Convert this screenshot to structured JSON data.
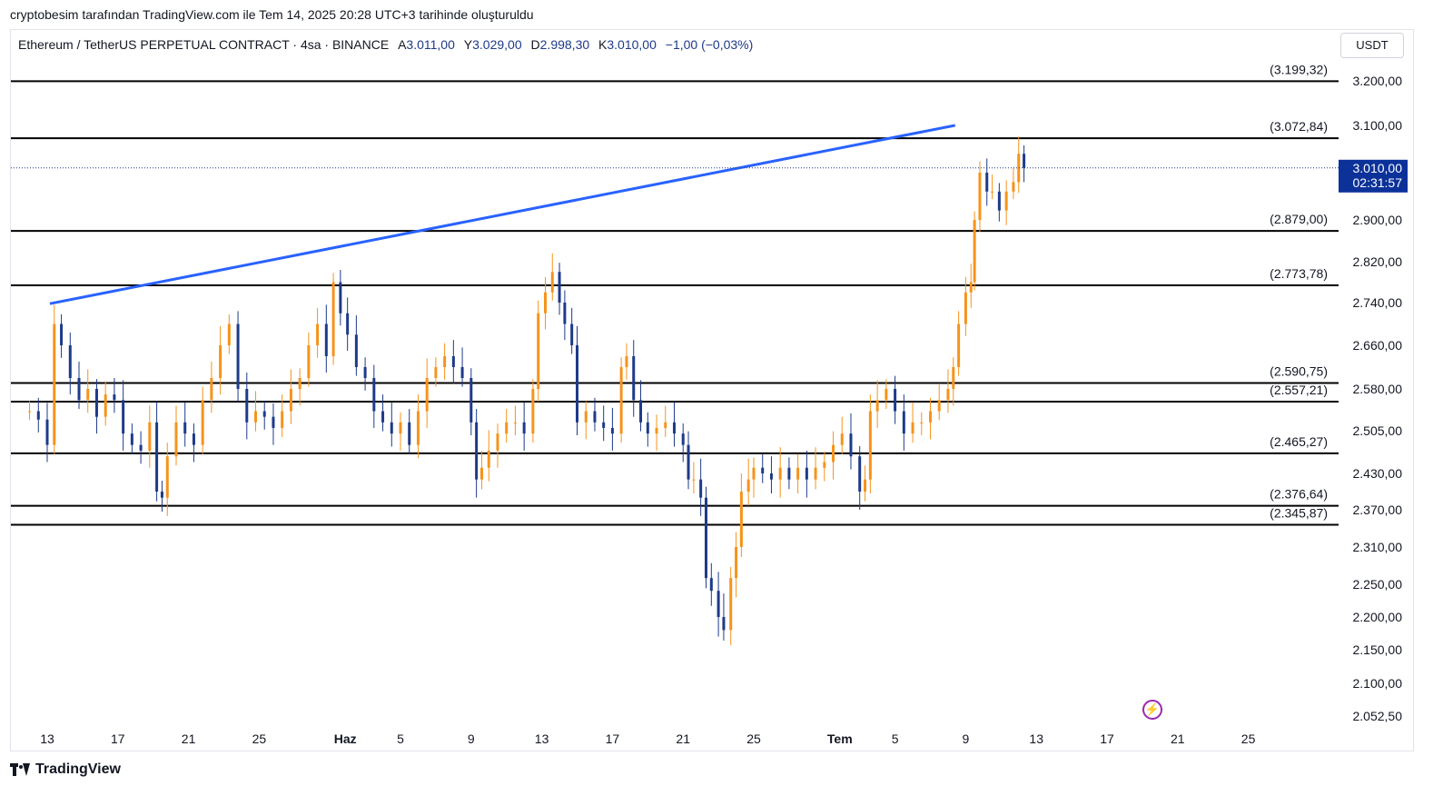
{
  "header": {
    "note": "cryptobesim tarafından TradingView.com ile Tem 14, 2025 20:28 UTC+3 tarihinde oluşturuldu"
  },
  "legend": {
    "symbol": "Ethereum / TetherUS PERPETUAL CONTRACT · 4sa · BINANCE",
    "open_label": "A",
    "open": "3.011,00",
    "high_label": "Y",
    "high": "3.029,00",
    "low_label": "D",
    "low": "2.998,30",
    "close_label": "K",
    "close": "3.010,00",
    "change": "−1,00 (−0,03%)"
  },
  "currency": "USDT",
  "price_tag": {
    "price": "3.010,00",
    "countdown": "02:31:57"
  },
  "branding": {
    "name": "TradingView"
  },
  "icons": {
    "logo": "tradingview-logo-icon",
    "alert": "lightning-icon"
  },
  "colors": {
    "up": "#f7931a",
    "down": "#1e3a8a",
    "trendline": "#2962ff",
    "level": "#000000",
    "price_tag_bg": "#0c3299"
  },
  "chart_data": {
    "type": "candlestick",
    "x_tick_labels": [
      "13",
      "17",
      "21",
      "25",
      "Haz",
      "5",
      "9",
      "13",
      "17",
      "21",
      "25",
      "Tem",
      "5",
      "9",
      "13",
      "17",
      "21",
      "25"
    ],
    "y_tick_labels": [
      "3.200,00",
      "3.100,00",
      "2.900,00",
      "2.820,00",
      "2.740,00",
      "2.660,00",
      "2.580,00",
      "2.505,00",
      "2.430,00",
      "2.370,00",
      "2.310,00",
      "2.250,00",
      "2.200,00",
      "2.150,00",
      "2.100,00",
      "2.052,50"
    ],
    "y_ticks": [
      3200,
      3100,
      2900,
      2820,
      2740,
      2660,
      2580,
      2505,
      2430,
      2370,
      2310,
      2250,
      2200,
      2150,
      2100,
      2052.5
    ],
    "ylim": [
      2030,
      3280
    ],
    "x_start_day": "13 May 2025",
    "horizontal_levels": [
      {
        "value": 3199.32,
        "label": "(3.199,32)"
      },
      {
        "value": 3072.84,
        "label": "(3.072,84)"
      },
      {
        "value": 2879.0,
        "label": "(2.879,00)"
      },
      {
        "value": 2773.78,
        "label": "(2.773,78)"
      },
      {
        "value": 2590.75,
        "label": "(2.590,75)"
      },
      {
        "value": 2557.21,
        "label": "(2.557,21)"
      },
      {
        "value": 2465.27,
        "label": "(2.465,27)"
      },
      {
        "value": 2376.64,
        "label": "(2.376,64)"
      },
      {
        "value": 2345.87,
        "label": "(2.345,87)"
      }
    ],
    "trendline": {
      "from": {
        "day": 13.15,
        "price": 2738
      },
      "to": {
        "day": 64.4,
        "price": 3100
      }
    },
    "current_price": 3010.0,
    "closes": [
      [
        12.0,
        2540
      ],
      [
        12.5,
        2525
      ],
      [
        13.0,
        2480
      ],
      [
        13.4,
        2700
      ],
      [
        13.8,
        2660
      ],
      [
        14.3,
        2600
      ],
      [
        14.8,
        2560
      ],
      [
        15.3,
        2580
      ],
      [
        15.8,
        2530
      ],
      [
        16.3,
        2570
      ],
      [
        16.8,
        2560
      ],
      [
        17.3,
        2500
      ],
      [
        17.8,
        2480
      ],
      [
        18.3,
        2470
      ],
      [
        18.8,
        2520
      ],
      [
        19.2,
        2400
      ],
      [
        19.5,
        2390
      ],
      [
        19.8,
        2460
      ],
      [
        20.3,
        2520
      ],
      [
        20.8,
        2500
      ],
      [
        21.3,
        2480
      ],
      [
        21.8,
        2560
      ],
      [
        22.3,
        2600
      ],
      [
        22.8,
        2660
      ],
      [
        23.3,
        2700
      ],
      [
        23.8,
        2580
      ],
      [
        24.3,
        2520
      ],
      [
        24.8,
        2540
      ],
      [
        25.3,
        2530
      ],
      [
        25.8,
        2510
      ],
      [
        26.3,
        2540
      ],
      [
        26.8,
        2580
      ],
      [
        27.3,
        2600
      ],
      [
        27.8,
        2660
      ],
      [
        28.3,
        2700
      ],
      [
        28.8,
        2640
      ],
      [
        29.2,
        2780
      ],
      [
        29.6,
        2720
      ],
      [
        30.0,
        2680
      ],
      [
        30.5,
        2620
      ],
      [
        31.0,
        2600
      ],
      [
        31.5,
        2540
      ],
      [
        32.0,
        2520
      ],
      [
        32.5,
        2500
      ],
      [
        33.0,
        2520
      ],
      [
        33.5,
        2480
      ],
      [
        34.0,
        2540
      ],
      [
        34.5,
        2600
      ],
      [
        35.0,
        2620
      ],
      [
        35.5,
        2640
      ],
      [
        36.0,
        2620
      ],
      [
        36.5,
        2600
      ],
      [
        37.0,
        2520
      ],
      [
        37.3,
        2420
      ],
      [
        37.6,
        2440
      ],
      [
        38.0,
        2470
      ],
      [
        38.5,
        2500
      ],
      [
        39.0,
        2520
      ],
      [
        39.5,
        2520
      ],
      [
        40.0,
        2500
      ],
      [
        40.5,
        2580
      ],
      [
        40.8,
        2720
      ],
      [
        41.2,
        2760
      ],
      [
        41.6,
        2800
      ],
      [
        42.0,
        2740
      ],
      [
        42.3,
        2700
      ],
      [
        42.7,
        2660
      ],
      [
        43.0,
        2520
      ],
      [
        43.5,
        2540
      ],
      [
        44.0,
        2520
      ],
      [
        44.5,
        2510
      ],
      [
        45.0,
        2500
      ],
      [
        45.5,
        2620
      ],
      [
        45.8,
        2640
      ],
      [
        46.2,
        2560
      ],
      [
        46.6,
        2520
      ],
      [
        47.0,
        2500
      ],
      [
        47.5,
        2510
      ],
      [
        48.0,
        2520
      ],
      [
        48.5,
        2500
      ],
      [
        49.0,
        2480
      ],
      [
        49.3,
        2420
      ],
      [
        49.6,
        2420
      ],
      [
        50.0,
        2390
      ],
      [
        50.3,
        2260
      ],
      [
        50.6,
        2240
      ],
      [
        51.0,
        2200
      ],
      [
        51.3,
        2180
      ],
      [
        51.7,
        2260
      ],
      [
        52.0,
        2310
      ],
      [
        52.3,
        2400
      ],
      [
        52.7,
        2420
      ],
      [
        53.0,
        2440
      ],
      [
        53.5,
        2430
      ],
      [
        54.0,
        2420
      ],
      [
        54.5,
        2440
      ],
      [
        55.0,
        2420
      ],
      [
        55.5,
        2440
      ],
      [
        56.0,
        2420
      ],
      [
        56.5,
        2440
      ],
      [
        57.0,
        2450
      ],
      [
        57.5,
        2480
      ],
      [
        58.0,
        2500
      ],
      [
        58.5,
        2460
      ],
      [
        59.0,
        2400
      ],
      [
        59.3,
        2420
      ],
      [
        59.6,
        2540
      ],
      [
        60.0,
        2560
      ],
      [
        60.5,
        2580
      ],
      [
        61.0,
        2540
      ],
      [
        61.5,
        2500
      ],
      [
        62.0,
        2520
      ],
      [
        62.5,
        2520
      ],
      [
        63.0,
        2540
      ],
      [
        63.5,
        2560
      ],
      [
        64.0,
        2580
      ],
      [
        64.3,
        2620
      ],
      [
        64.6,
        2700
      ],
      [
        65.0,
        2760
      ],
      [
        65.3,
        2780
      ],
      [
        65.5,
        2900
      ],
      [
        65.8,
        3000
      ],
      [
        66.2,
        2960
      ],
      [
        66.5,
        2960
      ],
      [
        66.9,
        2920
      ],
      [
        67.3,
        2960
      ],
      [
        67.7,
        2980
      ],
      [
        68.0,
        3040
      ],
      [
        68.3,
        3010
      ]
    ]
  }
}
